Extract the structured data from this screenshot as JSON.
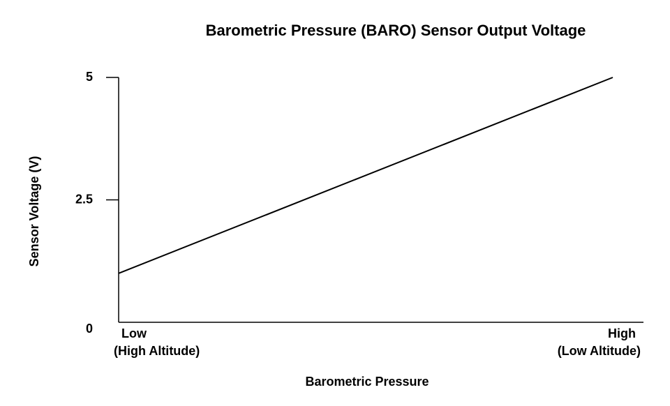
{
  "chart_data": {
    "type": "line",
    "title": "Barometric Pressure (BARO) Sensor Output Voltage",
    "x_label": "Barometric Pressure",
    "y_label": "Sensor Voltage (V)",
    "categories": [
      "Low",
      "High"
    ],
    "category_sublabels": [
      "(High Altitude)",
      "(Low Altitude)"
    ],
    "values": [
      1,
      5
    ],
    "color": "#000000",
    "ylim": [
      0,
      5
    ],
    "yticks": [
      0,
      2.5,
      5
    ],
    "grid": false
  }
}
